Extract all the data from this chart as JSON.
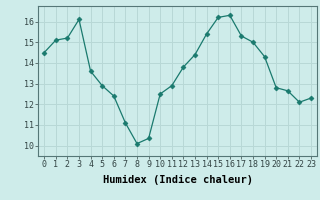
{
  "x": [
    0,
    1,
    2,
    3,
    4,
    5,
    6,
    7,
    8,
    9,
    10,
    11,
    12,
    13,
    14,
    15,
    16,
    17,
    18,
    19,
    20,
    21,
    22,
    23
  ],
  "y": [
    14.5,
    15.1,
    15.2,
    16.1,
    13.6,
    12.9,
    12.4,
    11.1,
    10.1,
    10.35,
    12.5,
    12.9,
    13.8,
    14.4,
    15.4,
    16.2,
    16.3,
    15.3,
    15.0,
    14.3,
    12.8,
    12.65,
    12.1,
    12.3
  ],
  "xlabel": "Humidex (Indice chaleur)",
  "xlim": [
    -0.5,
    23.5
  ],
  "ylim": [
    9.5,
    16.75
  ],
  "yticks": [
    10,
    11,
    12,
    13,
    14,
    15,
    16
  ],
  "xticks": [
    0,
    1,
    2,
    3,
    4,
    5,
    6,
    7,
    8,
    9,
    10,
    11,
    12,
    13,
    14,
    15,
    16,
    17,
    18,
    19,
    20,
    21,
    22,
    23
  ],
  "line_color": "#1a7a6e",
  "marker": "D",
  "marker_size": 2.5,
  "bg_color": "#ceecea",
  "grid_color": "#b8d8d6",
  "axes_bg": "#ceecea",
  "xlabel_fontsize": 7.5,
  "tick_fontsize": 6.0
}
